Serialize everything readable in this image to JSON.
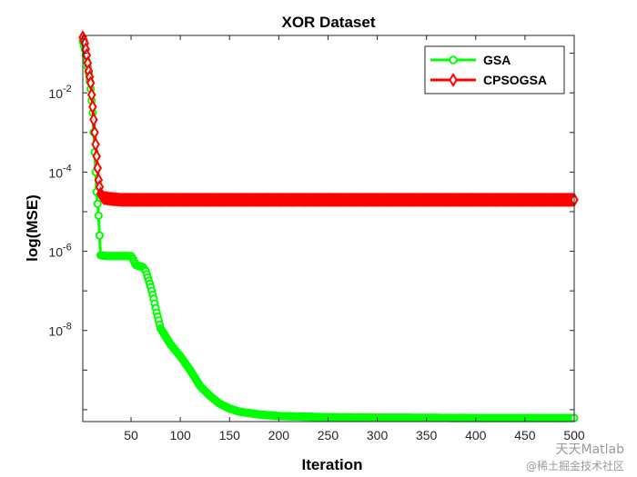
{
  "chart_data": {
    "type": "line",
    "title": "XOR Dataset",
    "xlabel": "Iteration",
    "ylabel": "log(MSE)",
    "xlim": [
      1,
      500
    ],
    "ylim_log10": [
      -10.3,
      -0.55
    ],
    "y_scale": "log",
    "grid": false,
    "legend_position": "top-right",
    "x_ticks": [
      50,
      100,
      150,
      200,
      250,
      300,
      350,
      400,
      450,
      500
    ],
    "x_tick_labels": [
      "50",
      "100",
      "150",
      "200",
      "250",
      "300",
      "350",
      "400",
      "450",
      "500"
    ],
    "y_tick_exponents": [
      -2,
      -4,
      -6,
      -8
    ],
    "y_tick_labels": [
      {
        "base": "10",
        "exp": "-2"
      },
      {
        "base": "10",
        "exp": "-4"
      },
      {
        "base": "10",
        "exp": "-6"
      },
      {
        "base": "10",
        "exp": "-8"
      }
    ],
    "series": [
      {
        "name": "GSA",
        "color": "#00ff00",
        "marker": "circle",
        "keypoints_log10": [
          [
            1,
            -0.7
          ],
          [
            3,
            -0.9
          ],
          [
            5,
            -1.2
          ],
          [
            7,
            -1.5
          ],
          [
            9,
            -1.9
          ],
          [
            11,
            -2.5
          ],
          [
            13,
            -3.5
          ],
          [
            15,
            -4.5
          ],
          [
            17,
            -5.1
          ],
          [
            19,
            -6.1
          ],
          [
            25,
            -6.12
          ],
          [
            50,
            -6.12
          ],
          [
            52,
            -6.2
          ],
          [
            55,
            -6.35
          ],
          [
            62,
            -6.4
          ],
          [
            65,
            -6.5
          ],
          [
            70,
            -6.9
          ],
          [
            73,
            -7.2
          ],
          [
            76,
            -7.55
          ],
          [
            80,
            -7.95
          ],
          [
            85,
            -8.15
          ],
          [
            90,
            -8.35
          ],
          [
            100,
            -8.65
          ],
          [
            110,
            -9.0
          ],
          [
            120,
            -9.4
          ],
          [
            130,
            -9.65
          ],
          [
            140,
            -9.85
          ],
          [
            150,
            -9.97
          ],
          [
            160,
            -10.05
          ],
          [
            180,
            -10.12
          ],
          [
            200,
            -10.16
          ],
          [
            250,
            -10.19
          ],
          [
            300,
            -10.2
          ],
          [
            400,
            -10.21
          ],
          [
            500,
            -10.21
          ]
        ]
      },
      {
        "name": "CPSOGSA",
        "color": "#ff0000",
        "marker": "diamond",
        "keypoints_log10": [
          [
            1,
            -0.6
          ],
          [
            3,
            -0.75
          ],
          [
            5,
            -1.05
          ],
          [
            7,
            -1.45
          ],
          [
            9,
            -1.75
          ],
          [
            11,
            -2.35
          ],
          [
            13,
            -3.0
          ],
          [
            15,
            -3.6
          ],
          [
            17,
            -4.2
          ],
          [
            19,
            -4.55
          ],
          [
            22,
            -4.65
          ],
          [
            30,
            -4.68
          ],
          [
            40,
            -4.7
          ],
          [
            60,
            -4.7
          ],
          [
            100,
            -4.7
          ],
          [
            200,
            -4.7
          ],
          [
            300,
            -4.7
          ],
          [
            400,
            -4.7
          ],
          [
            500,
            -4.7
          ]
        ]
      }
    ]
  },
  "watermark": {
    "line1": "天天Matlab",
    "line2": "@稀土掘金技术社区"
  }
}
